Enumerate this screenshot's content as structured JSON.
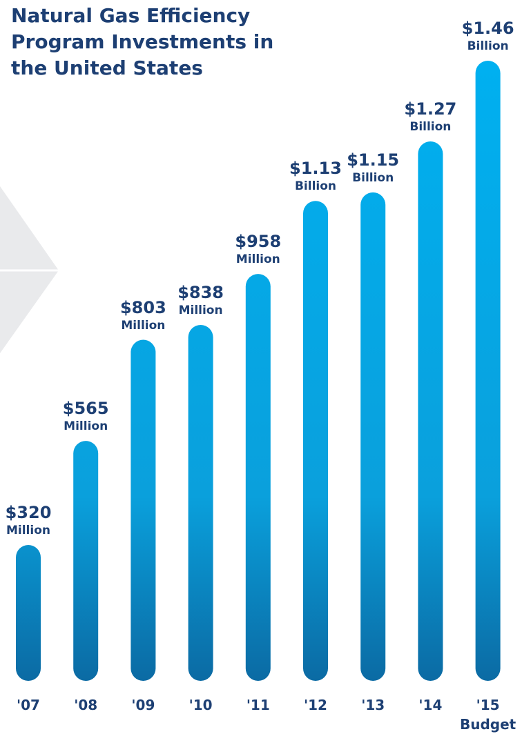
{
  "chart_data": {
    "type": "bar",
    "title": "Natural Gas Efficiency Program Investments in the United States",
    "categories": [
      "'07",
      "'08",
      "'09",
      "'10",
      "'11",
      "'12",
      "'13",
      "'14",
      "'15 Budget"
    ],
    "values": [
      320,
      565,
      803,
      838,
      958,
      1130,
      1150,
      1270,
      1460
    ],
    "value_labels": [
      "$320 Million",
      "$565 Million",
      "$803 Million",
      "$838 Million",
      "$958 Million",
      "$1.13 Billion",
      "$1.15 Billion",
      "$1.27 Billion",
      "$1.46 Billion"
    ],
    "color": "#00aeef"
  }
}
